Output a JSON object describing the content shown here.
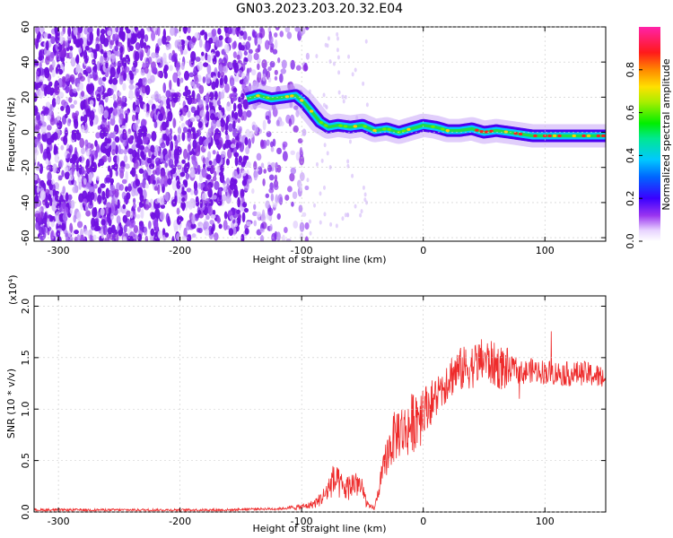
{
  "page": {
    "title": "GN03.2023.203.20.32.E04"
  },
  "chart_data": [
    {
      "type": "heatmap",
      "xlabel": "Height of straight line (km)",
      "ylabel": "Frequency (Hz)",
      "xlim": [
        -320,
        150
      ],
      "ylim": [
        -62,
        60
      ],
      "xticks": [
        -300,
        -200,
        -100,
        0,
        100
      ],
      "xtick_labels": [
        "-300",
        "-200",
        "-100",
        "0",
        "100"
      ],
      "yticks": [
        60,
        40,
        20,
        0,
        -20,
        -40,
        -60
      ],
      "ytick_labels": [
        "60",
        "40",
        "20",
        "0",
        "-20",
        "-40",
        "-60"
      ],
      "colorbar": {
        "label": "Normalized spectral amplitude",
        "range": [
          0,
          1
        ],
        "ticks": [
          0.0,
          0.2,
          0.4,
          0.6,
          0.8
        ],
        "tick_labels": [
          "0.0",
          "0.2",
          "0.4",
          "0.6",
          "0.8"
        ],
        "colormap": "rainbow (white-violet-blue-cyan-green-yellow-red-magenta)"
      },
      "ridge": {
        "x": [
          -145,
          -135,
          -125,
          -115,
          -105,
          -98,
          -92,
          -85,
          -78,
          -70,
          -60,
          -50,
          -40,
          -30,
          -20,
          -10,
          0,
          10,
          20,
          30,
          40,
          50,
          60,
          70,
          80,
          90,
          100,
          110,
          120,
          130,
          140,
          150
        ],
        "frequency": [
          19,
          21,
          19,
          20,
          21,
          17,
          12,
          6,
          3,
          4,
          3,
          4,
          1,
          2,
          0,
          2,
          4,
          3,
          1,
          1,
          2,
          0,
          1,
          0,
          -1,
          -2,
          -2,
          -2,
          -2,
          -2,
          -2,
          -2
        ]
      },
      "grid": true
    },
    {
      "type": "line",
      "xlabel": "Height of straight line (km)",
      "ylabel": "SNR (10 * v/v)",
      "yscale_label": "(x10",
      "yscale_exp": "4",
      "yscale_close": ")",
      "xlim": [
        -320,
        150
      ],
      "ylim": [
        0.0,
        2.1
      ],
      "xticks": [
        -300,
        -200,
        -100,
        0,
        100
      ],
      "xtick_labels": [
        "-300",
        "-200",
        "-100",
        "0",
        "100"
      ],
      "yticks": [
        0.0,
        0.5,
        1.0,
        1.5,
        2.0
      ],
      "ytick_labels": [
        "0.0",
        "0.5",
        "1.0",
        "1.5",
        "2.0"
      ],
      "series": [
        {
          "color": "#ee2b2b",
          "x": [
            -320,
            -300,
            -280,
            -260,
            -240,
            -220,
            -200,
            -180,
            -160,
            -140,
            -120,
            -110,
            -100,
            -95,
            -90,
            -85,
            -80,
            -75,
            -70,
            -65,
            -60,
            -55,
            -50,
            -45,
            -40,
            -35,
            -30,
            -25,
            -20,
            -15,
            -10,
            -5,
            0,
            5,
            10,
            15,
            20,
            25,
            30,
            35,
            40,
            45,
            50,
            55,
            60,
            65,
            70,
            75,
            80,
            90,
            100,
            110,
            120,
            130,
            140,
            150
          ],
          "y": [
            0.02,
            0.02,
            0.02,
            0.02,
            0.02,
            0.02,
            0.02,
            0.02,
            0.02,
            0.03,
            0.03,
            0.04,
            0.05,
            0.06,
            0.08,
            0.12,
            0.18,
            0.3,
            0.28,
            0.22,
            0.25,
            0.3,
            0.2,
            0.05,
            0.04,
            0.3,
            0.55,
            0.7,
            0.8,
            0.78,
            0.85,
            0.95,
            1.0,
            1.05,
            1.1,
            1.2,
            1.3,
            1.35,
            1.38,
            1.4,
            1.42,
            1.45,
            1.48,
            1.45,
            1.42,
            1.4,
            1.38,
            1.4,
            1.35,
            1.38,
            1.36,
            1.35,
            1.34,
            1.35,
            1.33,
            1.3
          ]
        }
      ],
      "grid": true
    }
  ]
}
